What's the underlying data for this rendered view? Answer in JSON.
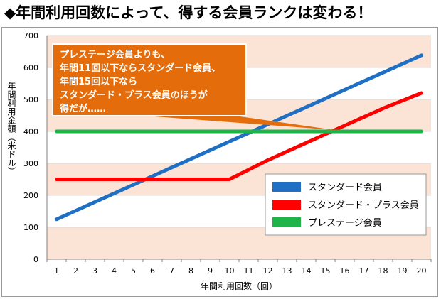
{
  "title": "◆年間利用回数によって、得する会員ランクは変わる！",
  "callout": {
    "lines": [
      "プレステージ会員よりも、",
      "年間11回以下ならスタンダード会員、",
      "年間15回以下なら",
      "スタンダード・プラス会員のほうが",
      "得だが……"
    ]
  },
  "colors": {
    "standard": "#1f6fc5",
    "standard_plus": "#ff0000",
    "prestige": "#1fb34a",
    "band": "#fbe4d5",
    "callout": "#e46c0a"
  },
  "chart_data": {
    "type": "line",
    "title": "",
    "xlabel": "年間利用回数（回）",
    "ylabel": "年間利用金額（米ドル）",
    "x": [
      1,
      2,
      3,
      4,
      5,
      6,
      7,
      8,
      9,
      10,
      11,
      12,
      13,
      14,
      15,
      16,
      17,
      18,
      19,
      20
    ],
    "ylim": [
      0,
      700
    ],
    "yticks": [
      0,
      100,
      200,
      300,
      400,
      500,
      600,
      700
    ],
    "series": [
      {
        "name": "スタンダード会員",
        "color": "#1f6fc5",
        "values": [
          125,
          152,
          179,
          206,
          233,
          260,
          287,
          314,
          341,
          368,
          395,
          422,
          449,
          476,
          503,
          530,
          557,
          584,
          611,
          638
        ]
      },
      {
        "name": "スタンダード・プラス会員",
        "color": "#ff0000",
        "values": [
          250,
          250,
          250,
          250,
          250,
          250,
          250,
          250,
          250,
          250,
          280,
          310,
          337,
          364,
          391,
          418,
          445,
          472,
          496,
          520
        ]
      },
      {
        "name": "プレステージ会員",
        "color": "#1fb34a",
        "values": [
          400,
          400,
          400,
          400,
          400,
          400,
          400,
          400,
          400,
          400,
          400,
          400,
          400,
          400,
          400,
          400,
          400,
          400,
          400,
          400
        ]
      }
    ],
    "legend": "right",
    "grid": true
  }
}
